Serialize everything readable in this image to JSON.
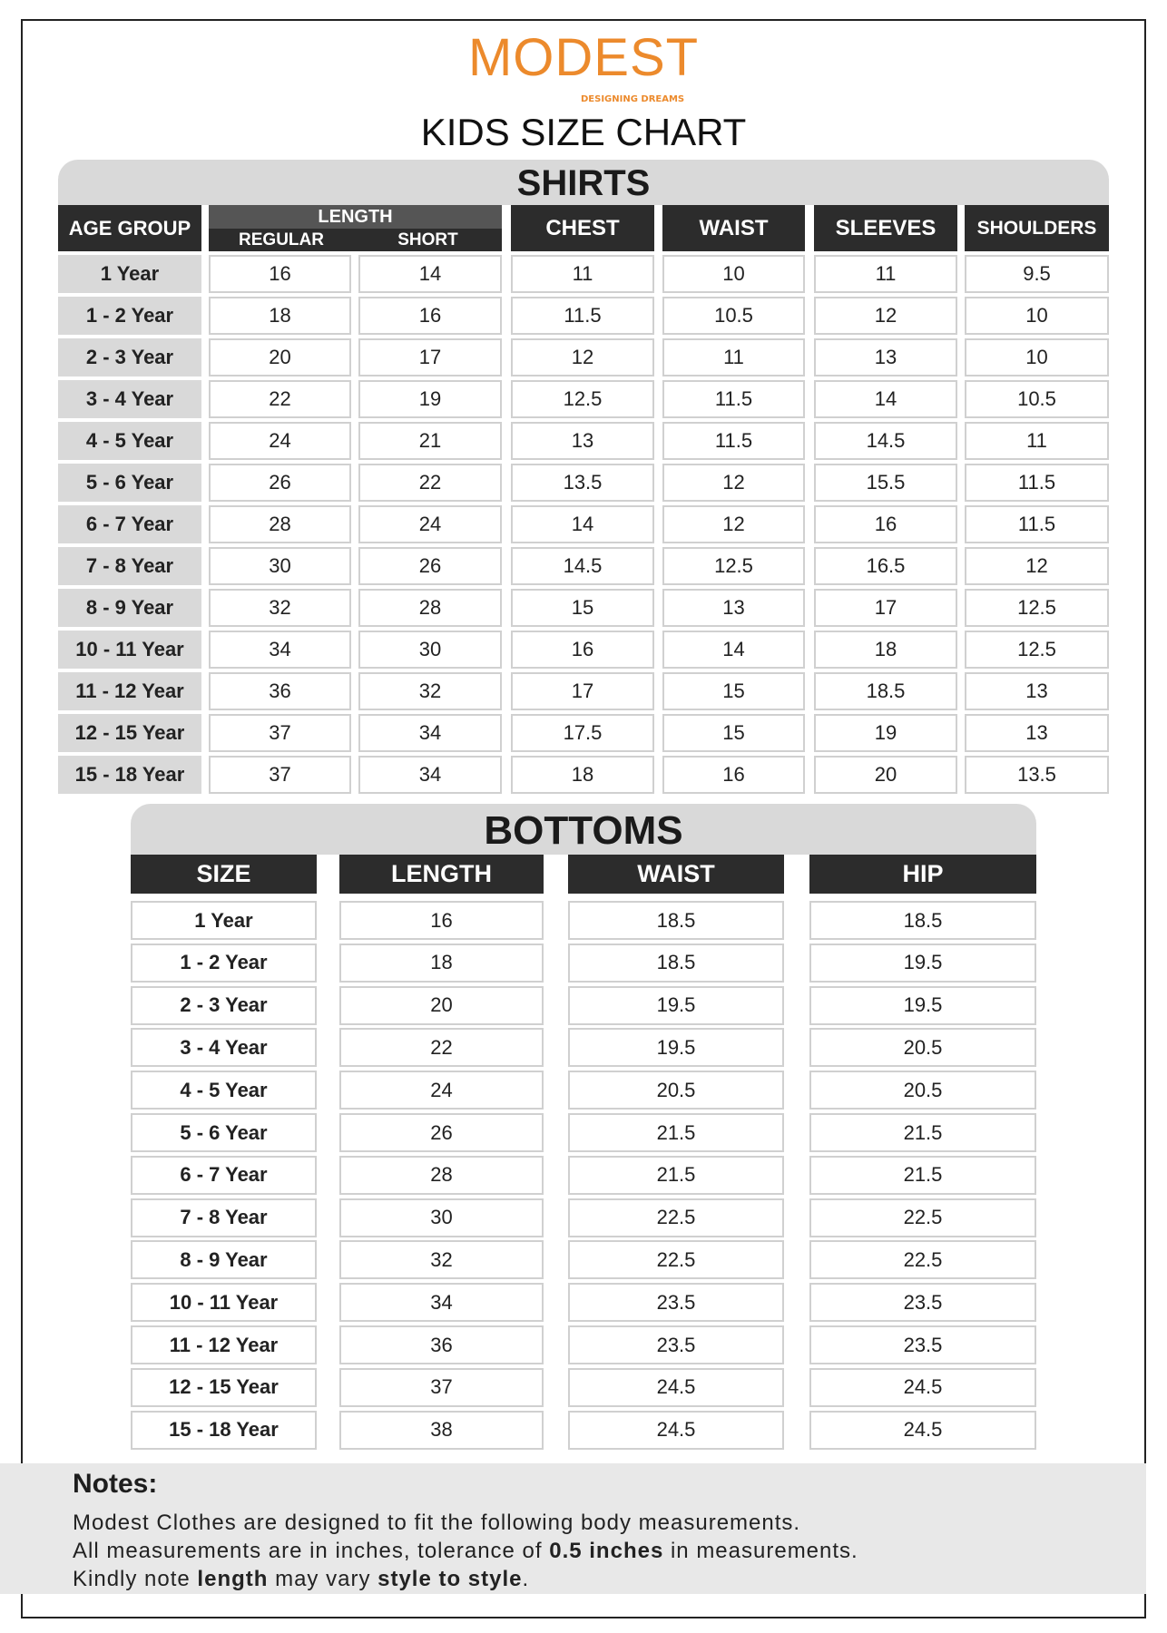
{
  "brand": {
    "logo_text": "MODEST",
    "tagline": "DESIGNING DREAMS",
    "color": "#ec8a2c"
  },
  "title": "KIDS SIZE CHART",
  "shirts": {
    "heading": "SHIRTS",
    "headers": {
      "age_group": "AGE GROUP",
      "length": "LENGTH",
      "regular": "REGULAR",
      "short": "SHORT",
      "chest": "CHEST",
      "waist": "WAIST",
      "sleeves": "SLEEVES",
      "shoulders": "SHOULDERS"
    },
    "rows": [
      [
        "1 Year",
        "16",
        "14",
        "11",
        "10",
        "11",
        "9.5"
      ],
      [
        "1 - 2 Year",
        "18",
        "16",
        "11.5",
        "10.5",
        "12",
        "10"
      ],
      [
        "2 - 3 Year",
        "20",
        "17",
        "12",
        "11",
        "13",
        "10"
      ],
      [
        "3 - 4 Year",
        "22",
        "19",
        "12.5",
        "11.5",
        "14",
        "10.5"
      ],
      [
        "4 - 5 Year",
        "24",
        "21",
        "13",
        "11.5",
        "14.5",
        "11"
      ],
      [
        "5 - 6 Year",
        "26",
        "22",
        "13.5",
        "12",
        "15.5",
        "11.5"
      ],
      [
        "6 - 7 Year",
        "28",
        "24",
        "14",
        "12",
        "16",
        "11.5"
      ],
      [
        "7 - 8 Year",
        "30",
        "26",
        "14.5",
        "12.5",
        "16.5",
        "12"
      ],
      [
        "8 - 9 Year",
        "32",
        "28",
        "15",
        "13",
        "17",
        "12.5"
      ],
      [
        "10 - 11 Year",
        "34",
        "30",
        "16",
        "14",
        "18",
        "12.5"
      ],
      [
        "11 - 12 Year",
        "36",
        "32",
        "17",
        "15",
        "18.5",
        "13"
      ],
      [
        "12 - 15 Year",
        "37",
        "34",
        "17.5",
        "15",
        "19",
        "13"
      ],
      [
        "15 - 18 Year",
        "37",
        "34",
        "18",
        "16",
        "20",
        "13.5"
      ]
    ]
  },
  "bottoms": {
    "heading": "BOTTOMS",
    "headers": [
      "SIZE",
      "LENGTH",
      "WAIST",
      "HIP"
    ],
    "rows": [
      [
        "1 Year",
        "16",
        "18.5",
        "18.5"
      ],
      [
        "1 - 2 Year",
        "18",
        "18.5",
        "19.5"
      ],
      [
        "2 - 3 Year",
        "20",
        "19.5",
        "19.5"
      ],
      [
        "3 - 4 Year",
        "22",
        "19.5",
        "20.5"
      ],
      [
        "4 - 5 Year",
        "24",
        "20.5",
        "20.5"
      ],
      [
        "5 - 6 Year",
        "26",
        "21.5",
        "21.5"
      ],
      [
        "6 - 7 Year",
        "28",
        "21.5",
        "21.5"
      ],
      [
        "7 - 8 Year",
        "30",
        "22.5",
        "22.5"
      ],
      [
        "8 - 9 Year",
        "32",
        "22.5",
        "22.5"
      ],
      [
        "10 - 11 Year",
        "34",
        "23.5",
        "23.5"
      ],
      [
        "11 - 12 Year",
        "36",
        "23.5",
        "23.5"
      ],
      [
        "12 - 15 Year",
        "37",
        "24.5",
        "24.5"
      ],
      [
        "15 - 18 Year",
        "38",
        "24.5",
        "24.5"
      ]
    ]
  },
  "notes": {
    "title": "Notes:",
    "line1": "Modest Clothes are designed to fit the following body measurements.",
    "line2_a": "All measurements are in inches, tolerance of ",
    "line2_b": "0.5 inches",
    "line2_c": " in measurements.",
    "line3_a": "Kindly note ",
    "line3_b": "length",
    "line3_c": " may vary ",
    "line3_d": "style to style",
    "line3_e": "."
  }
}
